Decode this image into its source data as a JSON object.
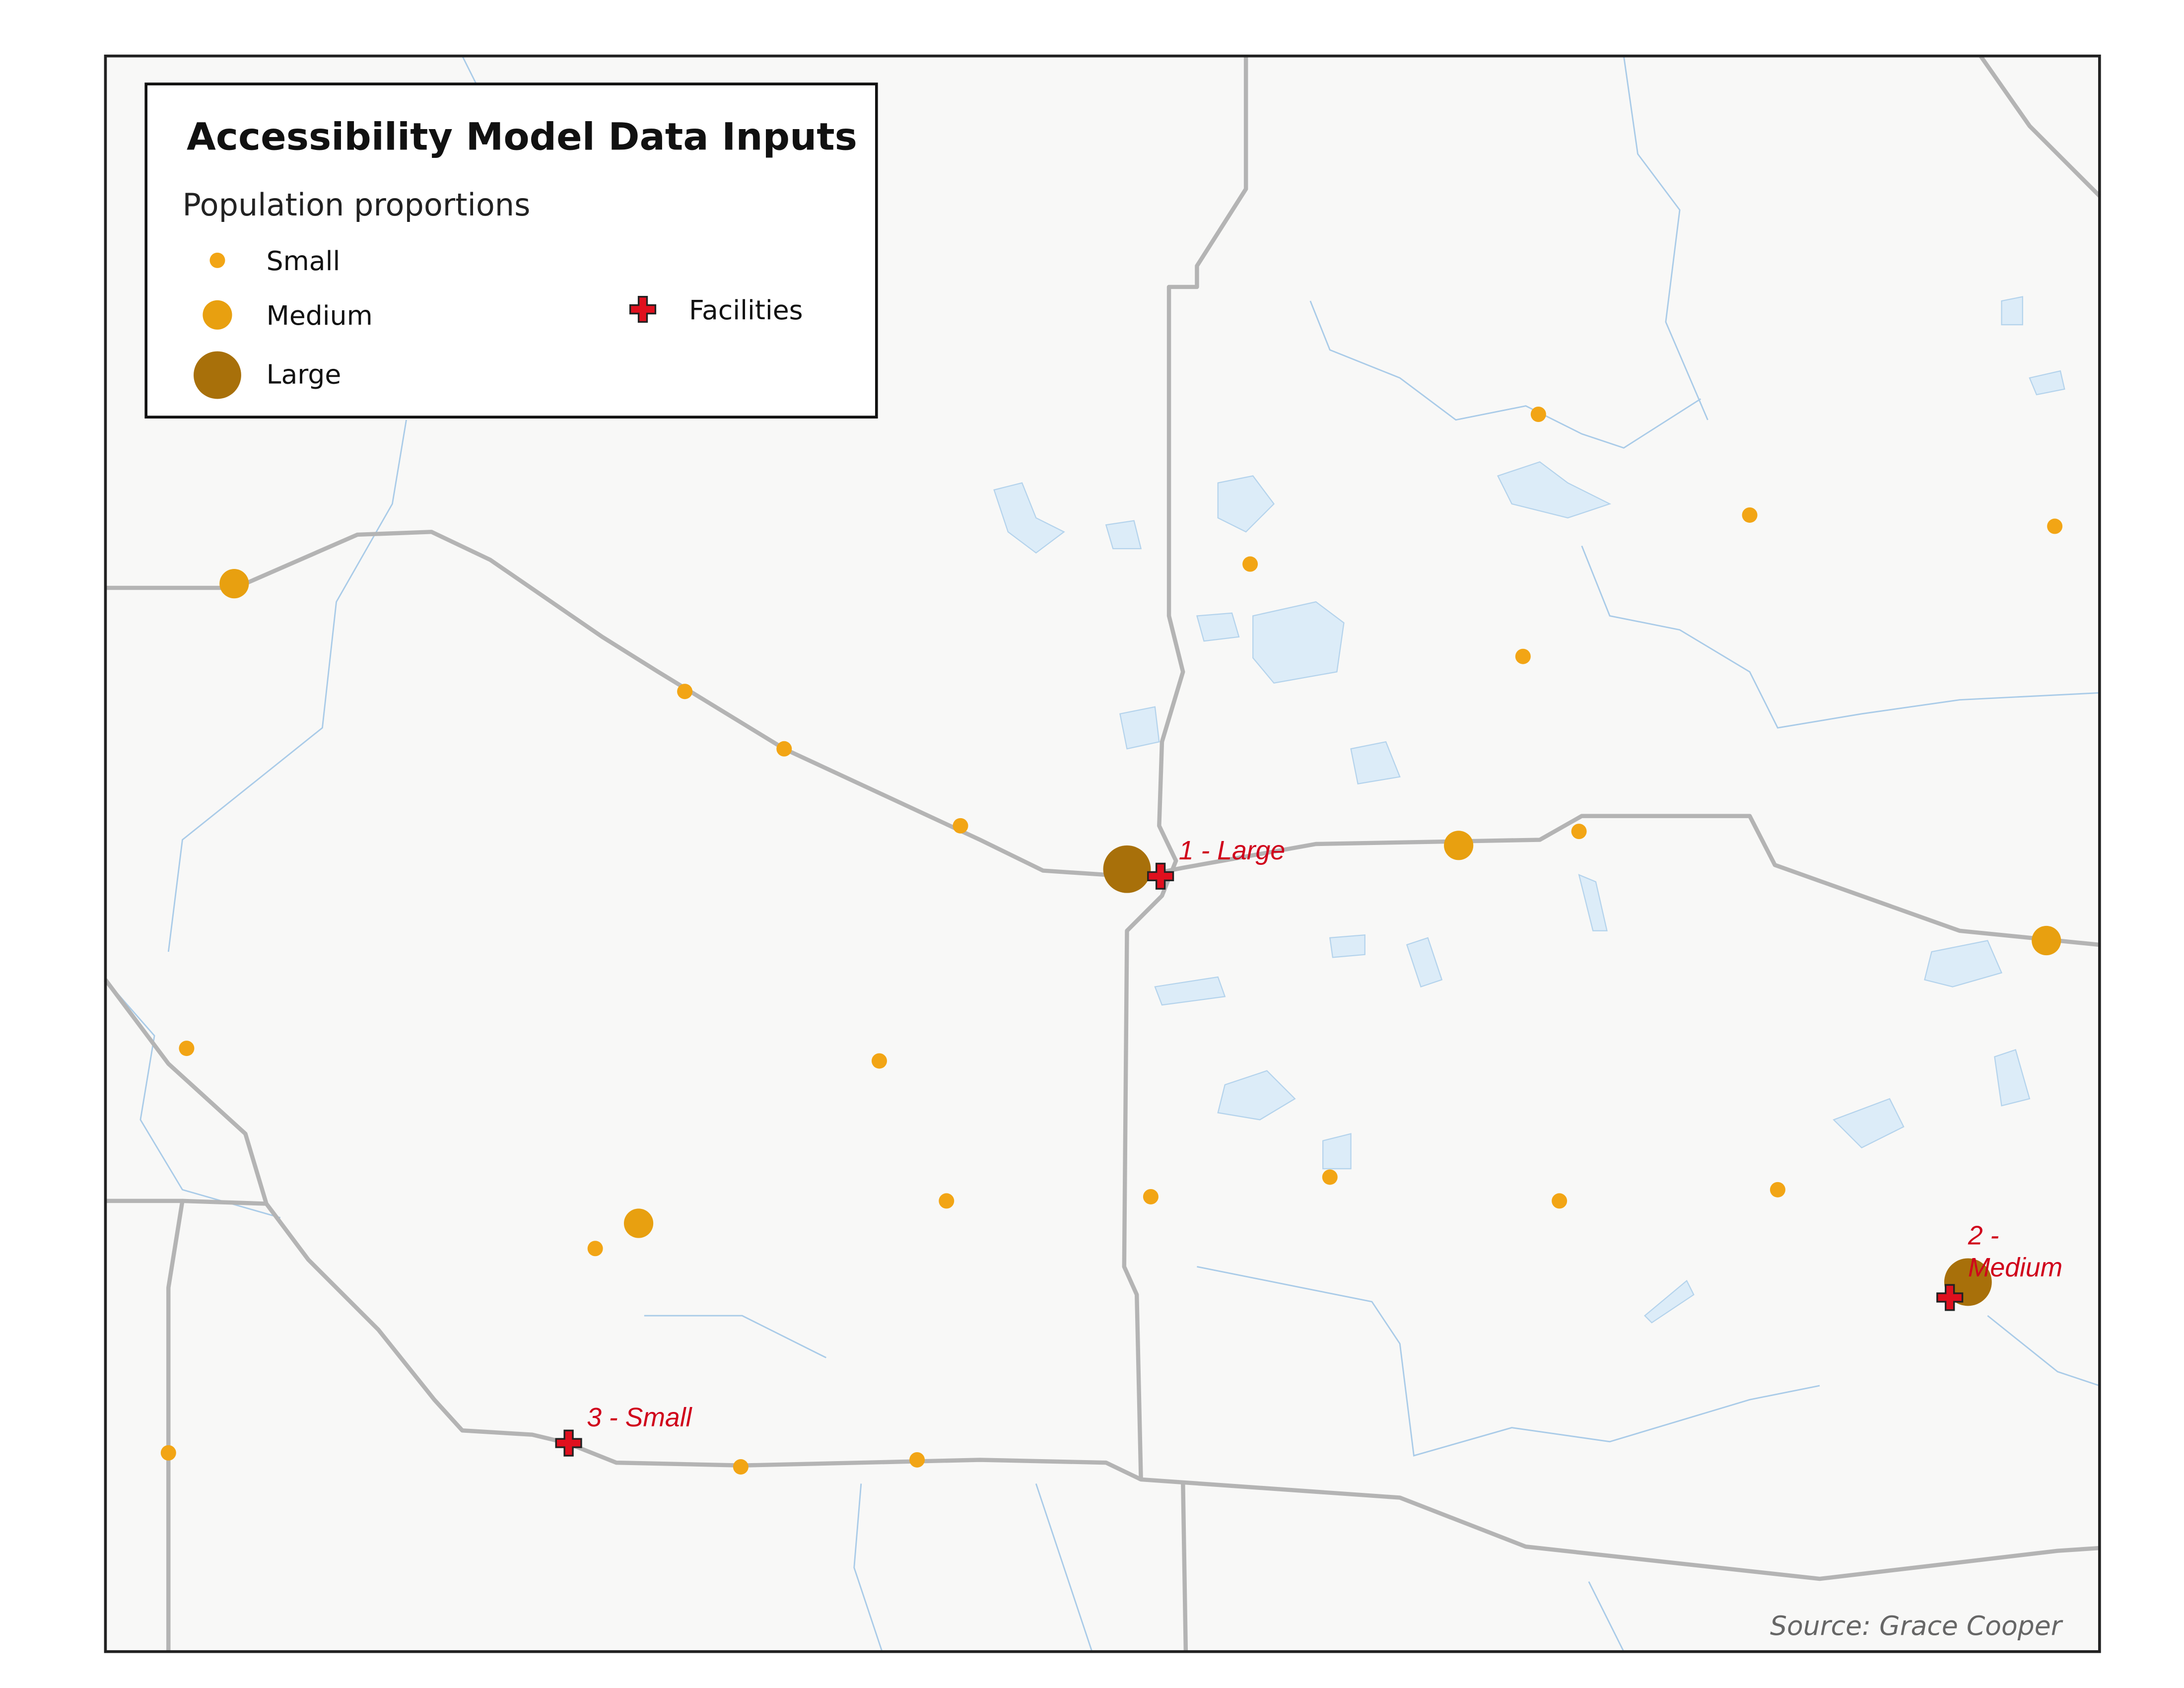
{
  "legend": {
    "title": "Accessibility Model Data Inputs",
    "subtitle": "Population proportions",
    "items": [
      "Small",
      "Medium",
      "Large",
      "Facilities"
    ]
  },
  "facility_labels": [
    [
      "1 - Large"
    ],
    [
      "2 -",
      "Medium"
    ],
    [
      "3 - Small"
    ]
  ],
  "source": "Source: Grace Cooper"
}
